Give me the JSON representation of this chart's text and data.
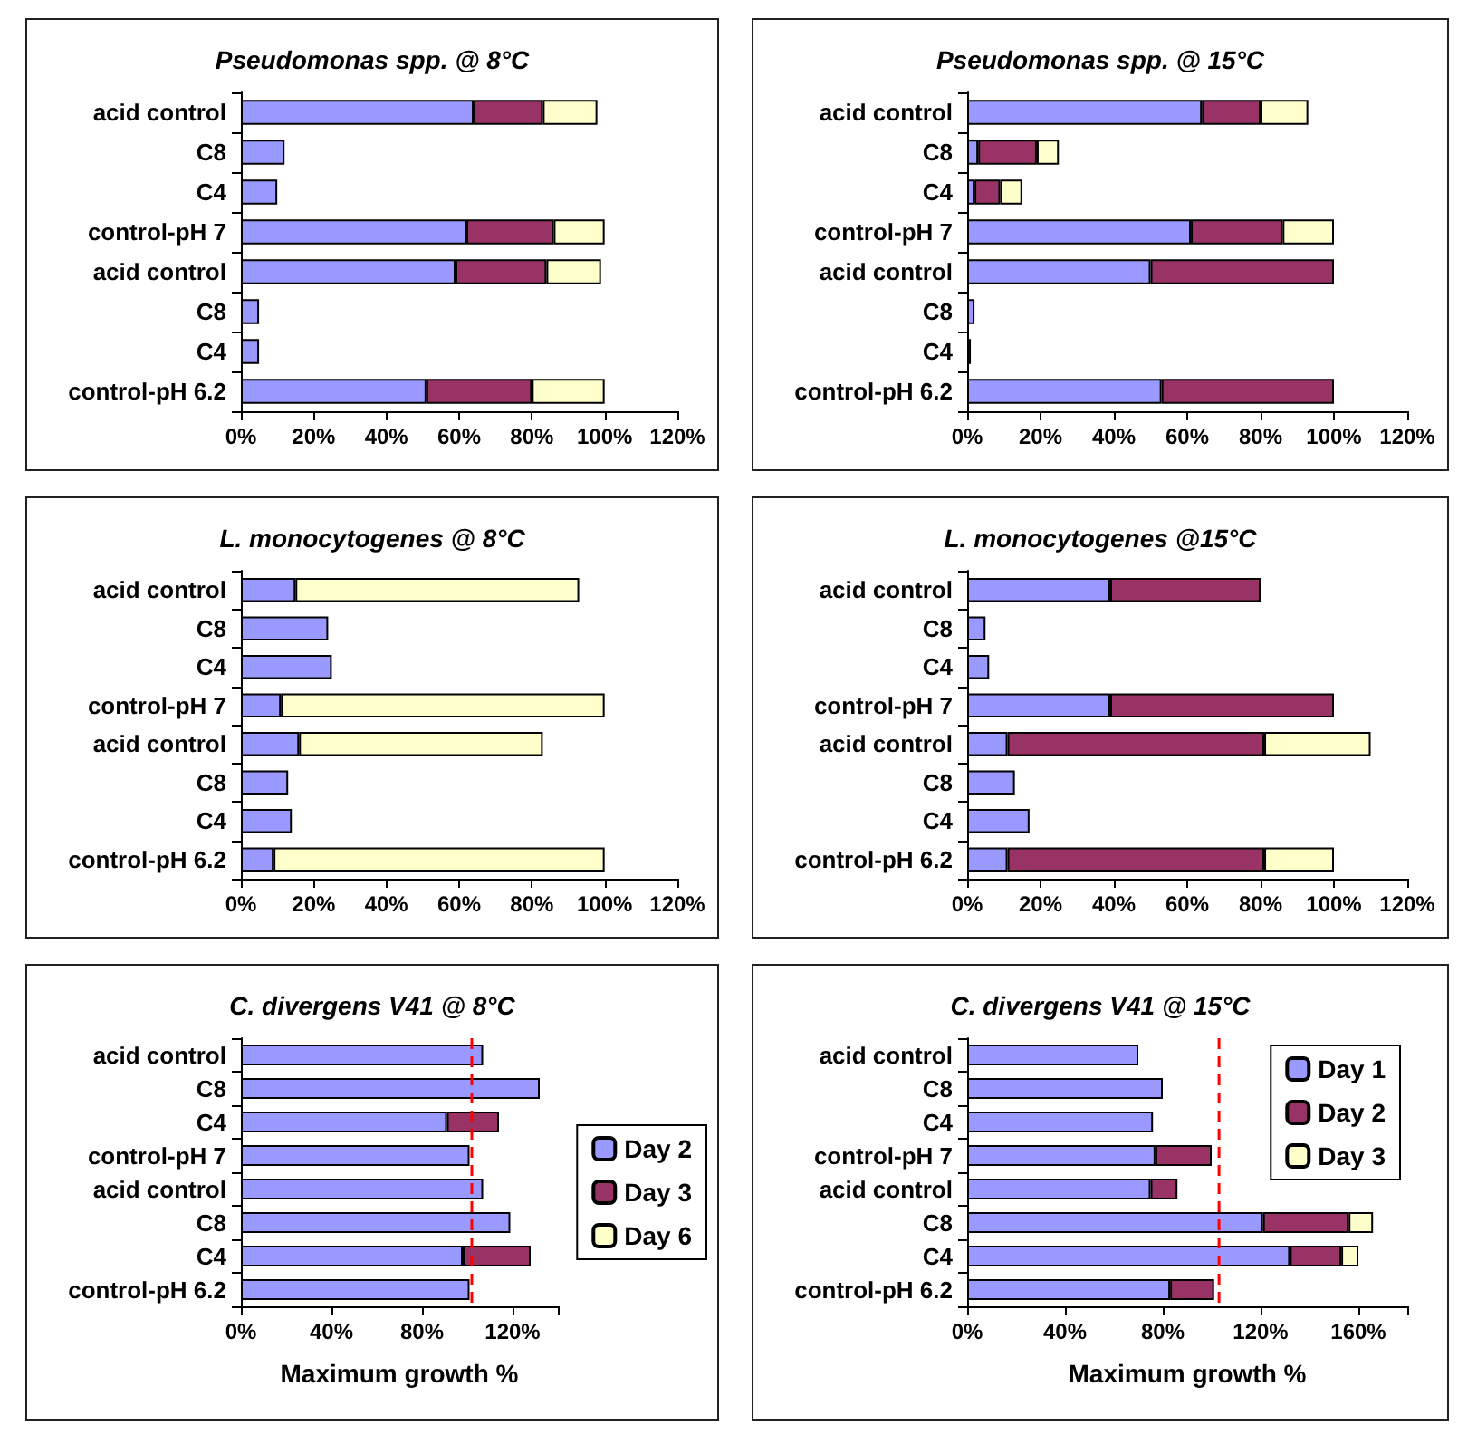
{
  "chart_data": [
    {
      "type": "bar",
      "orientation": "horizontal",
      "stacked": true,
      "title": "Pseudomonas spp. @ 8°C",
      "categories": [
        "acid control",
        "C8",
        "C4",
        "control-pH 7",
        "acid control",
        "C8",
        "C4",
        "control-pH 6.2"
      ],
      "series": [
        {
          "color": "#9999ff",
          "values": [
            64,
            12,
            10,
            62,
            59,
            5,
            5,
            51
          ]
        },
        {
          "color": "#993366",
          "values": [
            19,
            null,
            null,
            24,
            25,
            null,
            null,
            29
          ]
        },
        {
          "color": "#ffffcc",
          "values": [
            15,
            null,
            null,
            14,
            15,
            null,
            null,
            20
          ]
        }
      ],
      "xlim": [
        0,
        120
      ],
      "xticks": [
        {
          "value": 0,
          "label": "0%"
        },
        {
          "value": 20,
          "label": "20%"
        },
        {
          "value": 40,
          "label": "40%"
        },
        {
          "value": 60,
          "label": "60%"
        },
        {
          "value": 80,
          "label": "80%"
        },
        {
          "value": 100,
          "label": "100%"
        },
        {
          "value": 120,
          "label": "120%"
        }
      ],
      "grid": false,
      "legend": false
    },
    {
      "type": "bar",
      "orientation": "horizontal",
      "stacked": true,
      "title": "Pseudomonas spp. @ 15°C",
      "categories": [
        "acid control",
        "C8",
        "C4",
        "control-pH 7",
        "acid control",
        "C8",
        "C4",
        "control-pH 6.2"
      ],
      "series": [
        {
          "color": "#9999ff",
          "values": [
            64,
            3,
            2,
            61,
            50,
            2,
            1,
            53
          ]
        },
        {
          "color": "#993366",
          "values": [
            16,
            16,
            7,
            25,
            50,
            null,
            null,
            47
          ]
        },
        {
          "color": "#ffffcc",
          "values": [
            13,
            6,
            6,
            14,
            null,
            null,
            null,
            null
          ]
        }
      ],
      "xlim": [
        0,
        120
      ],
      "xticks": [
        {
          "value": 0,
          "label": "0%"
        },
        {
          "value": 20,
          "label": "20%"
        },
        {
          "value": 40,
          "label": "40%"
        },
        {
          "value": 60,
          "label": "60%"
        },
        {
          "value": 80,
          "label": "80%"
        },
        {
          "value": 100,
          "label": "100%"
        },
        {
          "value": 120,
          "label": "120%"
        }
      ],
      "grid": false,
      "legend": false
    },
    {
      "type": "bar",
      "orientation": "horizontal",
      "stacked": true,
      "title": "L. monocytogenes @ 8°C",
      "categories": [
        "acid control",
        "C8",
        "C4",
        "control-pH 7",
        "acid control",
        "C8",
        "C4",
        "control-pH 6.2"
      ],
      "series": [
        {
          "color": "#9999ff",
          "values": [
            15,
            24,
            25,
            11,
            16,
            13,
            14,
            9
          ]
        },
        {
          "color": "#993366",
          "values": [
            null,
            null,
            null,
            null,
            null,
            null,
            null,
            null
          ]
        },
        {
          "color": "#ffffcc",
          "values": [
            78,
            null,
            null,
            89,
            67,
            null,
            null,
            91
          ]
        }
      ],
      "xlim": [
        0,
        120
      ],
      "xticks": [
        {
          "value": 0,
          "label": "0%"
        },
        {
          "value": 20,
          "label": "20%"
        },
        {
          "value": 40,
          "label": "40%"
        },
        {
          "value": 60,
          "label": "60%"
        },
        {
          "value": 80,
          "label": "80%"
        },
        {
          "value": 100,
          "label": "100%"
        },
        {
          "value": 120,
          "label": "120%"
        }
      ],
      "grid": false,
      "legend": false
    },
    {
      "type": "bar",
      "orientation": "horizontal",
      "stacked": true,
      "title": "L. monocytogenes @15°C",
      "categories": [
        "acid control",
        "C8",
        "C4",
        "control-pH 7",
        "acid control",
        "C8",
        "C4",
        "control-pH 6.2"
      ],
      "series": [
        {
          "color": "#9999ff",
          "values": [
            39,
            5,
            6,
            39,
            11,
            13,
            17,
            11
          ]
        },
        {
          "color": "#993366",
          "values": [
            41,
            null,
            null,
            61,
            70,
            null,
            null,
            70
          ]
        },
        {
          "color": "#ffffcc",
          "values": [
            null,
            null,
            null,
            null,
            29,
            null,
            null,
            19
          ]
        }
      ],
      "xlim": [
        0,
        120
      ],
      "xticks": [
        {
          "value": 0,
          "label": "0%"
        },
        {
          "value": 20,
          "label": "20%"
        },
        {
          "value": 40,
          "label": "40%"
        },
        {
          "value": 60,
          "label": "60%"
        },
        {
          "value": 80,
          "label": "80%"
        },
        {
          "value": 100,
          "label": "100%"
        },
        {
          "value": 120,
          "label": "120%"
        }
      ],
      "grid": false,
      "legend": false
    },
    {
      "type": "bar",
      "orientation": "horizontal",
      "stacked": true,
      "title": "C. divergens V41 @ 8°C",
      "xlabel": "Maximum growth %",
      "categories": [
        "acid control",
        "C8",
        "C4",
        "control-pH 7",
        "acid control",
        "C8",
        "C4",
        "control-pH 6.2"
      ],
      "series": [
        {
          "name": "Day 2",
          "color": "#9999ff",
          "values": [
            107,
            132,
            91,
            101,
            107,
            119,
            98,
            101
          ]
        },
        {
          "name": "Day 3",
          "color": "#993366",
          "values": [
            null,
            null,
            23,
            null,
            null,
            null,
            30,
            null
          ]
        },
        {
          "name": "Day 6",
          "color": "#ffffcc",
          "values": [
            null,
            null,
            null,
            null,
            null,
            null,
            null,
            null
          ]
        }
      ],
      "xlim": [
        0,
        140
      ],
      "xticks": [
        {
          "value": 0,
          "label": "0%"
        },
        {
          "value": 40,
          "label": "40%"
        },
        {
          "value": 80,
          "label": "80%"
        },
        {
          "value": 120,
          "label": "120%"
        },
        {
          "value": 140,
          "label": null
        }
      ],
      "ref_lines": [
        {
          "axis": "x",
          "value": 102,
          "label": null,
          "color": "#ff0000",
          "line_style": "dashed"
        }
      ],
      "grid": false,
      "legend": "right"
    },
    {
      "type": "bar",
      "orientation": "horizontal",
      "stacked": true,
      "title": "C. divergens V41 @ 15°C",
      "xlabel": "Maximum growth %",
      "categories": [
        "acid control",
        "C8",
        "C4",
        "control-pH 7",
        "acid control",
        "C8",
        "C4",
        "control-pH 6.2"
      ],
      "series": [
        {
          "name": "Day 1",
          "color": "#9999ff",
          "values": [
            70,
            80,
            76,
            77,
            75,
            121,
            132,
            83
          ]
        },
        {
          "name": "Day 2",
          "color": "#993366",
          "values": [
            null,
            null,
            null,
            23,
            11,
            35,
            21,
            18
          ]
        },
        {
          "name": "Day 3",
          "color": "#ffffcc",
          "values": [
            null,
            null,
            null,
            null,
            null,
            10,
            7,
            null
          ]
        }
      ],
      "xlim": [
        0,
        180
      ],
      "xticks": [
        {
          "value": 0,
          "label": "0%"
        },
        {
          "value": 40,
          "label": "40%"
        },
        {
          "value": 80,
          "label": "80%"
        },
        {
          "value": 120,
          "label": "120%"
        },
        {
          "value": 160,
          "label": "160%"
        },
        {
          "value": 180,
          "label": null
        }
      ],
      "ref_lines": [
        {
          "axis": "x",
          "value": 103,
          "label": null,
          "color": "#ff0000",
          "line_style": "dashed"
        }
      ],
      "grid": false,
      "legend": "top right"
    }
  ]
}
